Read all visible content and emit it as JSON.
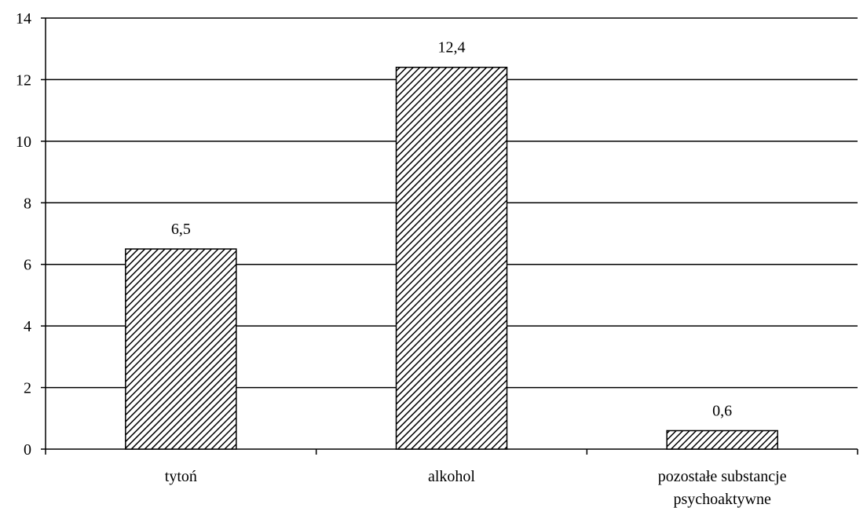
{
  "chart_data": {
    "type": "bar",
    "categories": [
      "tytoń",
      "alkohol",
      "pozostałe substancje psychoaktywne"
    ],
    "category_label_lines": [
      [
        "tytoń"
      ],
      [
        "alkohol"
      ],
      [
        "pozostałe substancje",
        "psychoaktywne"
      ]
    ],
    "values": [
      6.5,
      12.4,
      0.6
    ],
    "data_labels": [
      "6,5",
      "12,4",
      "0,6"
    ],
    "y_ticks": [
      0,
      2,
      4,
      6,
      8,
      10,
      12,
      14
    ],
    "ylim": [
      0,
      14
    ],
    "grid": true,
    "legend": "none",
    "bar_pattern": "diagonal-hatch",
    "colors": {
      "bar_stroke": "#000000",
      "hatch": "#000000",
      "background": "#ffffff",
      "grid": "#000000"
    }
  }
}
